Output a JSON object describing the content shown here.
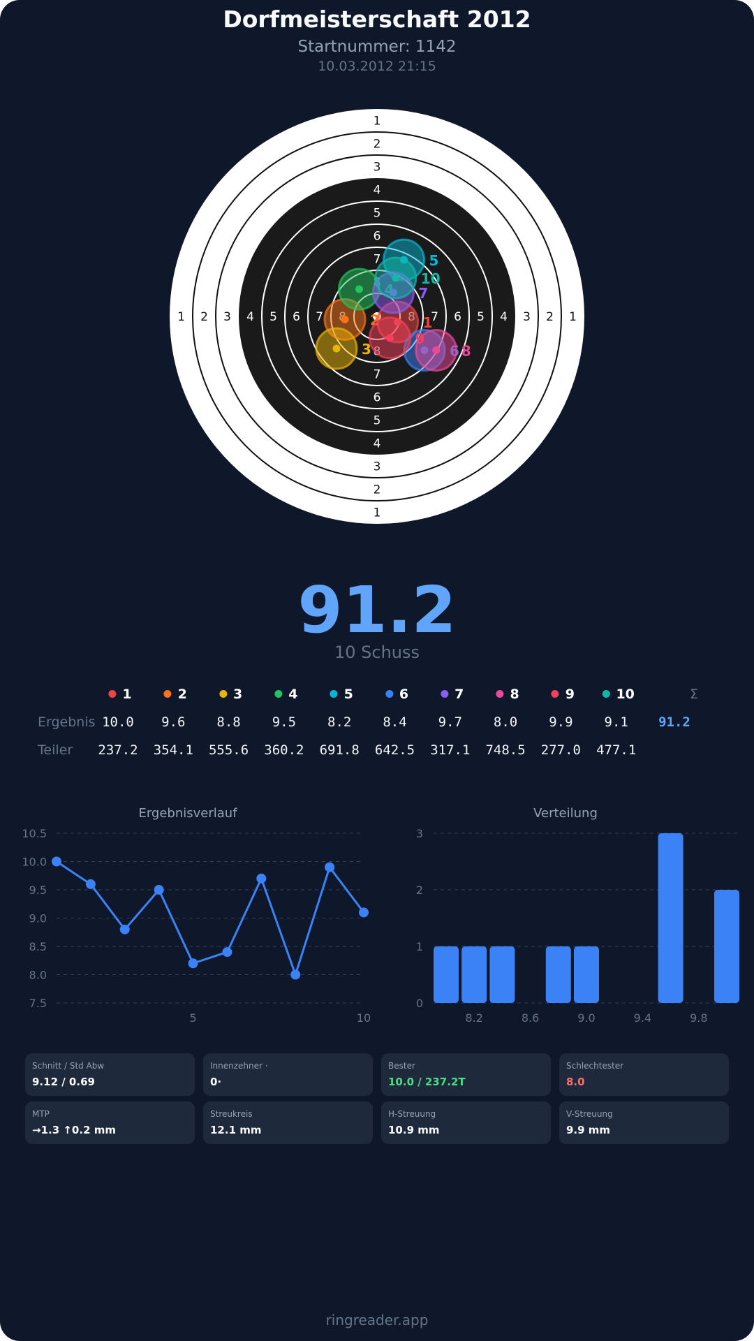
{
  "header": {
    "title": "Dorfmeisterschaft 2012",
    "startnummer": "Startnummer: 1142",
    "datetime": "10.03.2012 21:15"
  },
  "target": {
    "ring_labels": [
      "1",
      "2",
      "3",
      "4",
      "5",
      "6",
      "7",
      "8"
    ]
  },
  "shots": [
    {
      "n": "1",
      "color": "#ef4444",
      "ergebnis": "10.0",
      "teiler": "237.2"
    },
    {
      "n": "2",
      "color": "#f97316",
      "ergebnis": "9.6",
      "teiler": "354.1"
    },
    {
      "n": "3",
      "color": "#eab308",
      "ergebnis": "8.8",
      "teiler": "555.6"
    },
    {
      "n": "4",
      "color": "#22c55e",
      "ergebnis": "9.5",
      "teiler": "360.2"
    },
    {
      "n": "5",
      "color": "#06b6d4",
      "ergebnis": "8.2",
      "teiler": "691.8"
    },
    {
      "n": "6",
      "color": "#3b82f6",
      "ergebnis": "8.4",
      "teiler": "642.5"
    },
    {
      "n": "7",
      "color": "#8b5cf6",
      "ergebnis": "9.7",
      "teiler": "317.1"
    },
    {
      "n": "8",
      "color": "#ec4899",
      "ergebnis": "8.0",
      "teiler": "748.5"
    },
    {
      "n": "9",
      "color": "#f43f5e",
      "ergebnis": "9.9",
      "teiler": "277.0"
    },
    {
      "n": "10",
      "color": "#14b8a6",
      "ergebnis": "9.1",
      "teiler": "477.1"
    }
  ],
  "summary": {
    "total": "91.2",
    "shots_label": "10 Schuss"
  },
  "table": {
    "row_ergebnis": "Ergebnis",
    "row_teiler": "Teiler",
    "sum_symbol": "Σ",
    "sum_value": "91.2"
  },
  "chart_data": [
    {
      "type": "line",
      "title": "Ergebnisverlauf",
      "x": [
        1,
        2,
        3,
        4,
        5,
        6,
        7,
        8,
        9,
        10
      ],
      "values": [
        10.0,
        9.6,
        8.8,
        9.5,
        8.2,
        8.4,
        9.7,
        8.0,
        9.9,
        9.1
      ],
      "ylim": [
        7.5,
        10.5
      ],
      "yticks": [
        "10.5",
        "10.0",
        "9.5",
        "9.0",
        "8.5",
        "8.0",
        "7.5"
      ],
      "xticks": [
        "5",
        "10"
      ],
      "color": "#3b82f6",
      "grid": true
    },
    {
      "type": "bar",
      "title": "Verteilung",
      "bins": [
        8.0,
        8.2,
        8.4,
        8.6,
        8.8,
        9.0,
        9.2,
        9.4,
        9.6,
        9.8,
        10.0
      ],
      "values": [
        1,
        1,
        1,
        0,
        1,
        1,
        0,
        0,
        3,
        0,
        2
      ],
      "ylim": [
        0,
        3
      ],
      "yticks": [
        "3",
        "2",
        "1",
        "0"
      ],
      "xticks": [
        "8.2",
        "8.6",
        "9.0",
        "9.4",
        "9.8"
      ],
      "color": "#3b82f6",
      "grid": true
    }
  ],
  "stats": [
    {
      "label": "Schnitt / Std Abw",
      "value": "9.12 / 0.69",
      "color": "#f8fafc"
    },
    {
      "label": "Innenzehner ·",
      "value": "0·",
      "color": "#f8fafc"
    },
    {
      "label": "Bester",
      "value": "10.0 / 237.2T",
      "color": "#4ade80"
    },
    {
      "label": "Schlechtester",
      "value": "8.0",
      "color": "#f87171"
    },
    {
      "label": "MTP",
      "value": "→1.3 ↑0.2 mm",
      "color": "#f8fafc"
    },
    {
      "label": "Streukreis",
      "value": "12.1 mm",
      "color": "#f8fafc"
    },
    {
      "label": "H-Streuung",
      "value": "10.9 mm",
      "color": "#f8fafc"
    },
    {
      "label": "V-Streuung",
      "value": "9.9 mm",
      "color": "#f8fafc"
    }
  ],
  "footer": {
    "text": "ringreader.app"
  }
}
